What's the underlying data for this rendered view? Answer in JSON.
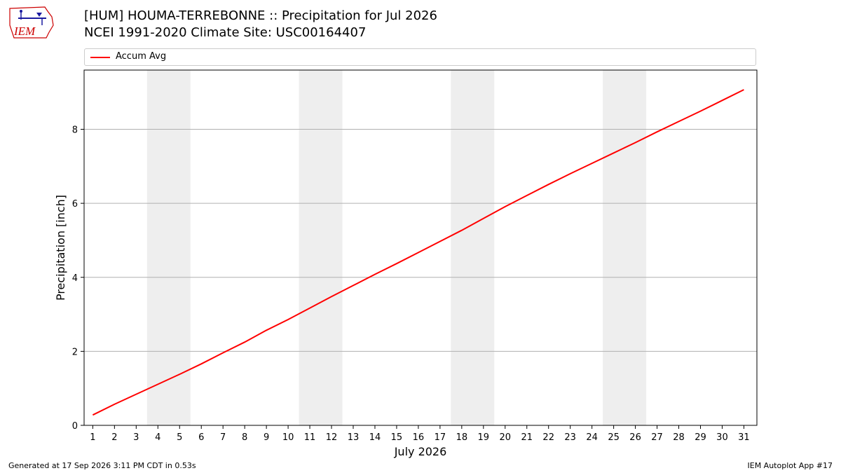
{
  "logo": {
    "text": "IEM",
    "color": "#cc0000",
    "accent": "#1a1aa0"
  },
  "header": {
    "title": "[HUM] HOUMA-TERREBONNE :: Precipitation for Jul 2026",
    "subtitle": "NCEI 1991-2020 Climate Site: USC00164407"
  },
  "legend": {
    "label": "Accum Avg"
  },
  "footer": {
    "left": "Generated at 17 Sep 2026 3:11 PM CDT in 0.53s",
    "right": "IEM Autoplot App #17"
  },
  "chart_data": {
    "type": "line",
    "xlabel": "July 2026",
    "ylabel": "Precipitation [inch]",
    "x": [
      1,
      2,
      3,
      4,
      5,
      6,
      7,
      8,
      9,
      10,
      11,
      12,
      13,
      14,
      15,
      16,
      17,
      18,
      19,
      20,
      21,
      22,
      23,
      24,
      25,
      26,
      27,
      28,
      29,
      30,
      31
    ],
    "x_tick_labels": [
      "1",
      "2",
      "3",
      "4",
      "5",
      "6",
      "7",
      "8",
      "9",
      "10",
      "11",
      "12",
      "13",
      "14",
      "15",
      "16",
      "17",
      "18",
      "19",
      "20",
      "21",
      "22",
      "23",
      "24",
      "25",
      "26",
      "27",
      "28",
      "29",
      "30",
      "31"
    ],
    "xlim": [
      0.6,
      31.6
    ],
    "ylim": [
      0,
      9.6
    ],
    "y_ticks": [
      0,
      2,
      4,
      6,
      8
    ],
    "grid": "y",
    "legend_position": "top",
    "weekend_bands": [
      [
        3.5,
        5.5
      ],
      [
        10.5,
        12.5
      ],
      [
        17.5,
        19.5
      ],
      [
        24.5,
        26.5
      ]
    ],
    "band_color": "#eeeeee",
    "series": [
      {
        "name": "Accum Avg",
        "color": "#ff0000",
        "values": [
          0.28,
          0.57,
          0.84,
          1.11,
          1.38,
          1.66,
          1.96,
          2.25,
          2.57,
          2.86,
          3.17,
          3.48,
          3.78,
          4.08,
          4.37,
          4.67,
          4.97,
          5.27,
          5.59,
          5.91,
          6.21,
          6.51,
          6.8,
          7.08,
          7.36,
          7.64,
          7.93,
          8.21,
          8.49,
          8.78,
          9.07
        ]
      }
    ]
  }
}
